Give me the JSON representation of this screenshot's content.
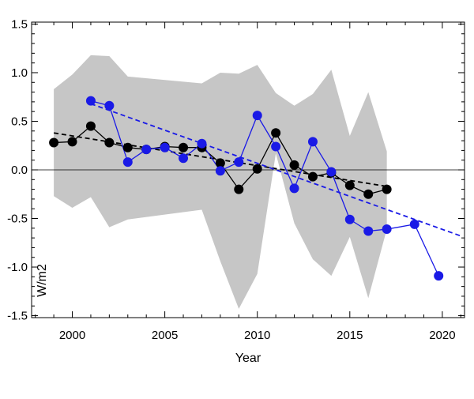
{
  "chart_data": {
    "type": "line",
    "xlabel": "Year",
    "ylabel": "W/m2",
    "xlim": [
      1997.8,
      2021.2
    ],
    "ylim": [
      -1.52,
      1.52
    ],
    "x_ticks": [
      2000,
      2005,
      2010,
      2015,
      2020
    ],
    "y_ticks": [
      -1.5,
      -1.0,
      -0.5,
      0.0,
      0.5,
      1.0,
      1.5
    ],
    "x_tick_labels": [
      "2000",
      "2005",
      "2010",
      "2015",
      "2020"
    ],
    "y_tick_labels": [
      "-1.5",
      "-1.0",
      "-0.5",
      "0.0",
      "0.5",
      "1.0",
      "1.5"
    ],
    "grid": false,
    "zero_line": 0.0,
    "band": {
      "color": "#c6c6c6",
      "x": [
        1999,
        2000,
        2001,
        2002,
        2003,
        2007,
        2008,
        2009,
        2010,
        2011,
        2012,
        2013,
        2014,
        2015,
        2016,
        2017
      ],
      "upper": [
        0.83,
        0.98,
        1.18,
        1.17,
        0.96,
        0.89,
        1.0,
        0.99,
        1.08,
        0.79,
        0.66,
        0.78,
        1.03,
        0.35,
        0.8,
        0.19
      ],
      "lower": [
        -0.27,
        -0.39,
        -0.28,
        -0.59,
        -0.51,
        -0.41,
        -0.94,
        -1.43,
        -1.07,
        0.17,
        -0.55,
        -0.92,
        -1.09,
        -0.69,
        -1.32,
        -0.61
      ]
    },
    "series": [
      {
        "color": "#000000",
        "x": [
          1999,
          2000,
          2001,
          2002,
          2003,
          2004,
          2005,
          2006,
          2007,
          2008,
          2009,
          2010,
          2011,
          2012,
          2013,
          2014,
          2015,
          2016,
          2017
        ],
        "y": [
          0.28,
          0.29,
          0.45,
          0.28,
          0.23,
          0.21,
          0.24,
          0.23,
          0.23,
          0.07,
          -0.2,
          0.01,
          0.38,
          0.05,
          -0.07,
          -0.03,
          -0.16,
          -0.25,
          -0.2
        ],
        "trend": {
          "x": [
            1999,
            2017
          ],
          "y": [
            0.38,
            -0.17
          ]
        }
      },
      {
        "color": "#1a1ae6",
        "x": [
          2001,
          2002,
          2003,
          2004,
          2005,
          2006,
          2007,
          2008,
          2009,
          2010,
          2011,
          2012,
          2013,
          2014,
          2015,
          2016,
          2017,
          2018.5,
          2019.8
        ],
        "y": [
          0.71,
          0.66,
          0.08,
          0.21,
          0.23,
          0.12,
          0.27,
          -0.01,
          0.08,
          0.56,
          0.24,
          -0.19,
          0.29,
          -0.02,
          -0.51,
          -0.63,
          -0.61,
          -0.56,
          -1.09
        ],
        "trend": {
          "x": [
            2001,
            2021
          ],
          "y": [
            0.68,
            -0.68
          ]
        }
      }
    ]
  }
}
